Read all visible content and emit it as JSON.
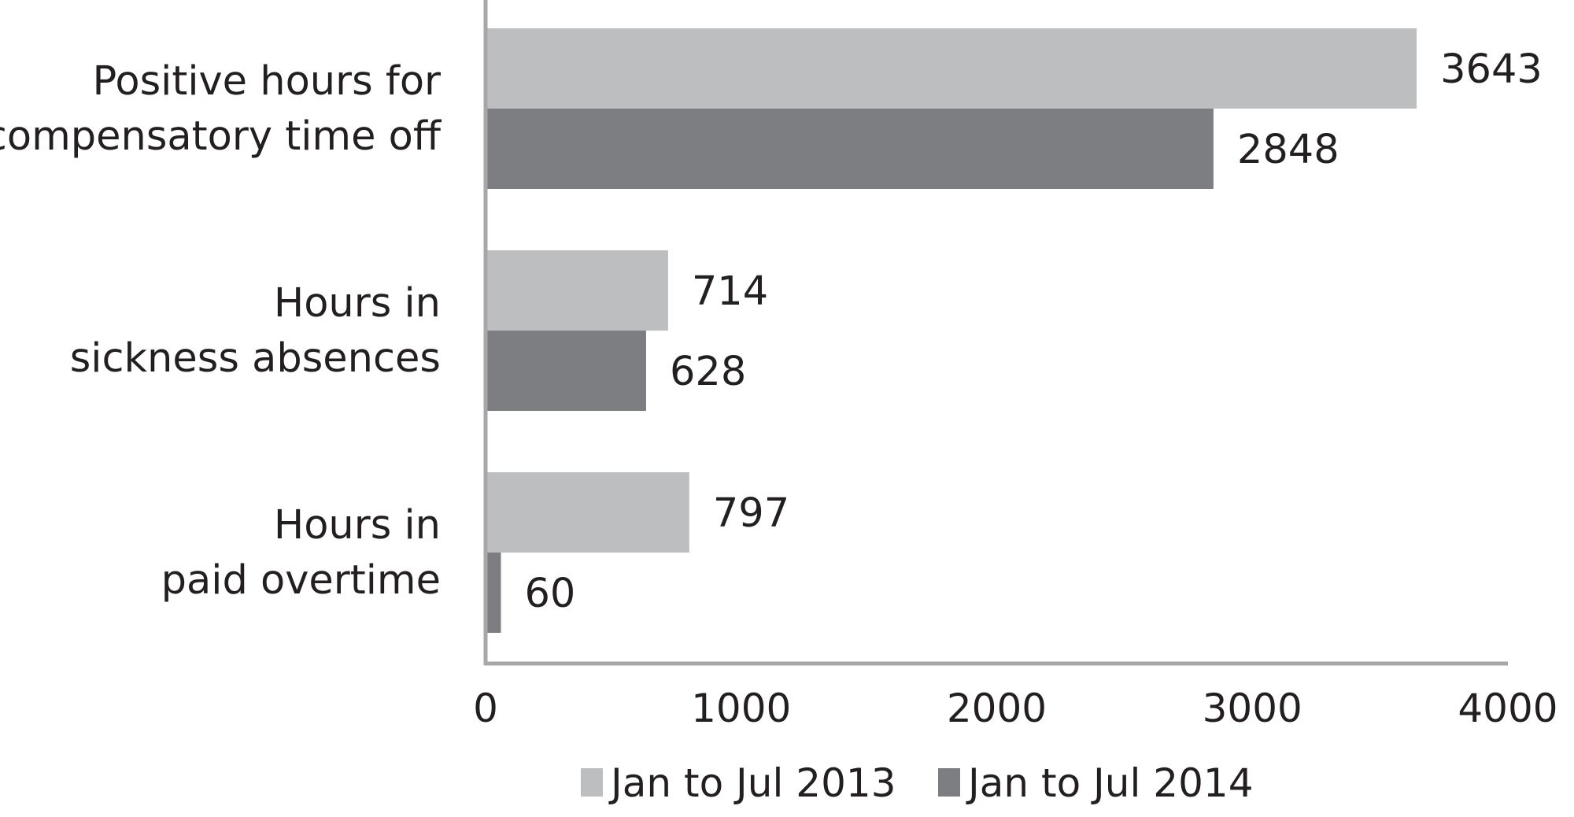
{
  "chart_data": {
    "type": "bar",
    "orientation": "horizontal",
    "categories": [
      [
        "Positive hours for",
        "compensatory time off"
      ],
      [
        "Hours in",
        "sickness absences"
      ],
      [
        "Hours in",
        "paid overtime"
      ]
    ],
    "series": [
      {
        "name": "Jan to Jul 2013",
        "color": "#bdbebf",
        "values": [
          3643,
          714,
          797
        ]
      },
      {
        "name": "Jan to Jul 2014",
        "color": "#7d7e82",
        "values": [
          2848,
          628,
          60
        ]
      }
    ],
    "xlim": [
      0,
      4000
    ],
    "xticks": [
      0,
      1000,
      2000,
      3000,
      4000
    ],
    "tick_labels": [
      "0",
      "1000",
      "2000",
      "3000",
      "4000"
    ],
    "grid": false,
    "legend_position": "bottom",
    "title": "",
    "xlabel": "",
    "ylabel": ""
  }
}
